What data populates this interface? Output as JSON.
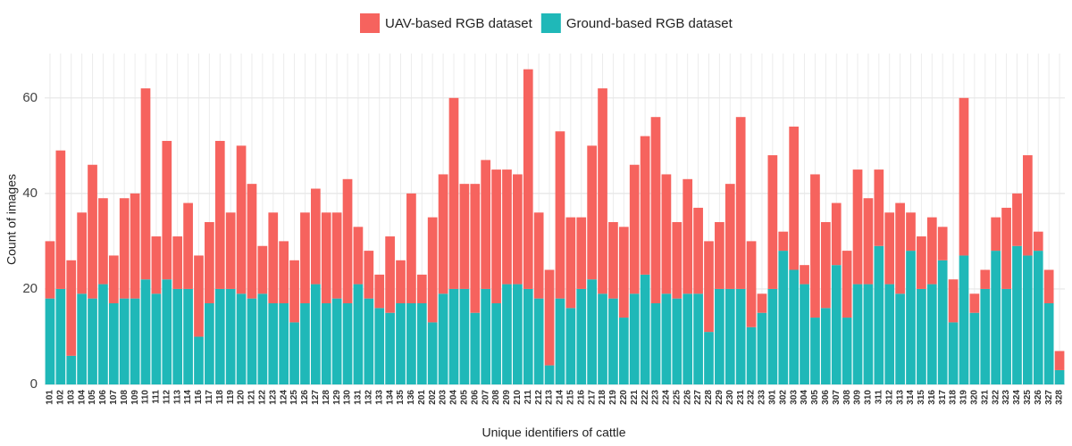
{
  "chart_data": {
    "type": "stacked_bar",
    "x_label": "Unique identifiers of cattle",
    "y_label": "Count of images",
    "categories": [
      "101",
      "102",
      "103",
      "104",
      "105",
      "106",
      "107",
      "108",
      "109",
      "110",
      "111",
      "112",
      "113",
      "114",
      "116",
      "117",
      "118",
      "119",
      "120",
      "121",
      "122",
      "123",
      "124",
      "125",
      "126",
      "127",
      "128",
      "129",
      "130",
      "131",
      "132",
      "133",
      "134",
      "135",
      "136",
      "201",
      "202",
      "203",
      "204",
      "205",
      "206",
      "207",
      "208",
      "209",
      "210",
      "211",
      "212",
      "213",
      "214",
      "215",
      "216",
      "217",
      "218",
      "219",
      "220",
      "221",
      "222",
      "223",
      "224",
      "225",
      "226",
      "227",
      "228",
      "229",
      "230",
      "231",
      "232",
      "233",
      "301",
      "302",
      "303",
      "304",
      "305",
      "306",
      "307",
      "308",
      "309",
      "310",
      "311",
      "312",
      "313",
      "314",
      "315",
      "316",
      "317",
      "318",
      "319",
      "320",
      "321",
      "322",
      "323",
      "324",
      "325",
      "326",
      "327",
      "328"
    ],
    "series": [
      {
        "name": "Ground-based RGB dataset",
        "color": "#1fb8b8",
        "values": [
          18,
          20,
          6,
          19,
          18,
          21,
          17,
          18,
          18,
          22,
          19,
          22,
          20,
          20,
          10,
          17,
          20,
          20,
          19,
          18,
          19,
          17,
          17,
          13,
          17,
          21,
          17,
          18,
          17,
          21,
          18,
          16,
          15,
          17,
          17,
          17,
          13,
          19,
          20,
          20,
          15,
          20,
          17,
          21,
          21,
          20,
          18,
          4,
          18,
          16,
          20,
          22,
          19,
          18,
          14,
          19,
          23,
          17,
          19,
          18,
          19,
          19,
          11,
          20,
          20,
          20,
          12,
          15,
          20,
          28,
          24,
          21,
          14,
          16,
          25,
          14,
          21,
          21,
          29,
          21,
          19,
          28,
          20,
          21,
          26,
          13,
          27,
          15,
          20,
          28,
          20,
          29,
          27,
          28,
          17,
          3
        ]
      },
      {
        "name": "UAV-based RGB dataset",
        "color": "#f6635e",
        "values": [
          12,
          29,
          20,
          17,
          28,
          18,
          10,
          21,
          22,
          40,
          12,
          29,
          11,
          18,
          17,
          17,
          31,
          16,
          31,
          24,
          10,
          19,
          13,
          13,
          19,
          20,
          19,
          18,
          26,
          12,
          10,
          7,
          16,
          9,
          23,
          6,
          22,
          25,
          40,
          22,
          27,
          27,
          28,
          24,
          23,
          46,
          18,
          20,
          35,
          19,
          15,
          28,
          43,
          16,
          19,
          27,
          29,
          39,
          25,
          16,
          24,
          18,
          19,
          14,
          22,
          36,
          18,
          4,
          28,
          4,
          30,
          4,
          30,
          18,
          13,
          14,
          24,
          18,
          16,
          15,
          19,
          8,
          11,
          14,
          7,
          9,
          33,
          4,
          4,
          7,
          17,
          11,
          21,
          4,
          7,
          4
        ]
      }
    ],
    "legend_order": [
      1,
      0
    ],
    "ylim": [
      0,
      69.3
    ],
    "yticks": [
      0,
      20,
      40,
      60
    ],
    "grid": true
  }
}
